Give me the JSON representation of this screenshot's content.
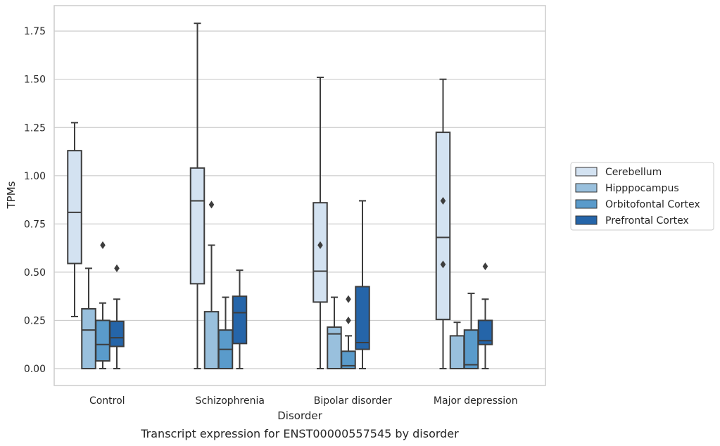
{
  "chart_data": {
    "type": "box",
    "title": "",
    "caption": "Transcript expression for ENST00000557545 by disorder",
    "xlabel": "Disorder",
    "ylabel": "TPMs",
    "ylim": [
      -0.085,
      1.88
    ],
    "yticks": [
      0.0,
      0.25,
      0.5,
      0.75,
      1.0,
      1.25,
      1.5,
      1.75
    ],
    "ytick_labels": [
      "0.00",
      "0.25",
      "0.50",
      "0.75",
      "1.00",
      "1.25",
      "1.50",
      "1.75"
    ],
    "grid": true,
    "legend_position": "right",
    "categories": [
      "Control",
      "Schizophrenia",
      "Bipolar disorder",
      "Major depression"
    ],
    "series": [
      {
        "name": "Cerebellum",
        "color": "#d3e2f1",
        "boxes": [
          {
            "whislo": 0.27,
            "q1": 0.545,
            "med": 0.81,
            "q3": 1.13,
            "whishi": 1.275,
            "fliers": []
          },
          {
            "whislo": 0.0,
            "q1": 0.44,
            "med": 0.87,
            "q3": 1.04,
            "whishi": 1.79,
            "fliers": []
          },
          {
            "whislo": 0.0,
            "q1": 0.345,
            "med": 0.505,
            "q3": 0.86,
            "whishi": 1.51,
            "fliers": [
              0.64
            ]
          },
          {
            "whislo": 0.0,
            "q1": 0.255,
            "med": 0.68,
            "q3": 1.225,
            "whishi": 1.5,
            "fliers": [
              0.87,
              0.54
            ]
          }
        ]
      },
      {
        "name": "Hipppocampus",
        "color": "#99c0dd",
        "boxes": [
          {
            "whislo": 0.0,
            "q1": 0.0,
            "med": 0.2,
            "q3": 0.31,
            "whishi": 0.52,
            "fliers": []
          },
          {
            "whislo": 0.0,
            "q1": 0.0,
            "med": 0.0,
            "q3": 0.295,
            "whishi": 0.64,
            "fliers": [
              0.85
            ]
          },
          {
            "whislo": 0.0,
            "q1": 0.0,
            "med": 0.18,
            "q3": 0.215,
            "whishi": 0.37,
            "fliers": []
          },
          {
            "whislo": 0.0,
            "q1": 0.0,
            "med": 0.0,
            "q3": 0.17,
            "whishi": 0.24,
            "fliers": []
          }
        ]
      },
      {
        "name": "Orbitofontal Cortex",
        "color": "#5a9bcb",
        "boxes": [
          {
            "whislo": 0.0,
            "q1": 0.04,
            "med": 0.125,
            "q3": 0.25,
            "whishi": 0.34,
            "fliers": [
              0.64
            ]
          },
          {
            "whislo": 0.0,
            "q1": 0.0,
            "med": 0.1,
            "q3": 0.2,
            "whishi": 0.37,
            "fliers": []
          },
          {
            "whislo": 0.0,
            "q1": 0.0,
            "med": 0.015,
            "q3": 0.09,
            "whishi": 0.17,
            "fliers": [
              0.36,
              0.25
            ]
          },
          {
            "whislo": 0.0,
            "q1": 0.0,
            "med": 0.02,
            "q3": 0.2,
            "whishi": 0.39,
            "fliers": []
          }
        ]
      },
      {
        "name": "Prefrontal Cortex",
        "color": "#2565a9",
        "boxes": [
          {
            "whislo": 0.0,
            "q1": 0.115,
            "med": 0.16,
            "q3": 0.245,
            "whishi": 0.36,
            "fliers": [
              0.52
            ]
          },
          {
            "whislo": 0.0,
            "q1": 0.13,
            "med": 0.29,
            "q3": 0.375,
            "whishi": 0.51,
            "fliers": []
          },
          {
            "whislo": 0.0,
            "q1": 0.1,
            "med": 0.135,
            "q3": 0.425,
            "whishi": 0.87,
            "fliers": []
          },
          {
            "whislo": 0.0,
            "q1": 0.125,
            "med": 0.145,
            "q3": 0.25,
            "whishi": 0.36,
            "fliers": [
              0.53
            ]
          }
        ]
      }
    ]
  }
}
